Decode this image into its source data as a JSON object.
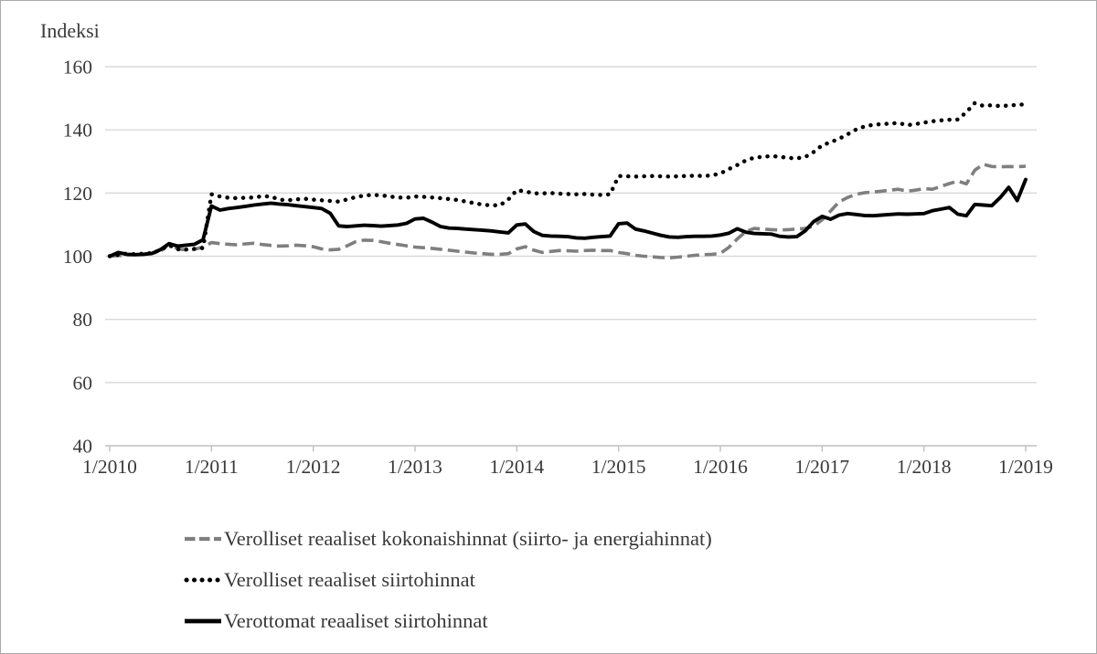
{
  "colors": {
    "dashed_series": "#7f7f7f",
    "black_series": "#000000",
    "gridline": "#d9d9d9",
    "axis_line": "#bfbfbf",
    "tick_text": "#3a3a3a",
    "background": "#ffffff"
  },
  "chart_data": {
    "type": "line",
    "title": "Indeksi",
    "xlabel": "",
    "ylabel": "Indeksi",
    "ylim": [
      40,
      160
    ],
    "yticks": [
      40,
      60,
      80,
      100,
      120,
      140,
      160
    ],
    "ytick_labels": [
      "40",
      "60",
      "80",
      "100",
      "120",
      "140",
      "160"
    ],
    "x_tick_labels": [
      "1/2010",
      "1/2011",
      "1/2012",
      "1/2013",
      "1/2014",
      "1/2015",
      "1/2016",
      "1/2017",
      "1/2018",
      "1/2019"
    ],
    "x_ticks_every_n_points": 12,
    "x_unit": "month",
    "x_range_note": "monthly data 1/2010 - 1/2019",
    "grid": "horizontal",
    "legend_position": "bottom-left",
    "series": [
      {
        "name": "Verolliset reaaliset kokonaishinnat (siirto- ja energiahinnat)",
        "style": "dashed",
        "color": "#7f7f7f",
        "values": [
          100.0,
          100.2,
          100.4,
          100.5,
          100.7,
          100.9,
          101.5,
          103.9,
          102.3,
          102.0,
          102.2,
          102.9,
          104.3,
          104.0,
          103.8,
          103.6,
          103.9,
          104.1,
          103.7,
          103.4,
          103.2,
          103.3,
          103.5,
          103.3,
          103.0,
          102.3,
          102.0,
          102.2,
          103.3,
          104.6,
          105.1,
          105.0,
          104.6,
          104.1,
          103.7,
          103.3,
          102.9,
          102.7,
          102.5,
          102.2,
          101.9,
          101.6,
          101.3,
          101.0,
          100.8,
          100.6,
          100.6,
          100.8,
          102.3,
          103.0,
          101.9,
          101.2,
          101.5,
          101.8,
          101.7,
          101.6,
          101.8,
          101.9,
          101.8,
          101.8,
          101.2,
          100.8,
          100.3,
          100.0,
          99.8,
          99.6,
          99.5,
          99.7,
          100.0,
          100.3,
          100.5,
          100.6,
          100.9,
          102.8,
          105.5,
          107.8,
          108.8,
          108.6,
          108.4,
          108.3,
          108.4,
          108.6,
          108.8,
          109.5,
          111.5,
          114.3,
          117.2,
          118.6,
          119.6,
          120.1,
          120.3,
          120.6,
          120.9,
          121.2,
          120.6,
          120.9,
          121.4,
          121.2,
          122.1,
          123.0,
          123.8,
          122.9,
          127.2,
          129.1,
          128.4,
          128.3,
          128.4,
          128.3,
          128.5
        ]
      },
      {
        "name": "Verolliset reaaliset siirtohinnat",
        "style": "dotted",
        "color": "#000000",
        "values": [
          100.0,
          100.4,
          100.8,
          100.6,
          100.8,
          101.0,
          102.0,
          103.5,
          102.2,
          102.1,
          102.3,
          102.6,
          119.6,
          118.9,
          118.5,
          118.4,
          118.5,
          118.6,
          119.0,
          118.9,
          117.9,
          117.7,
          118.0,
          118.2,
          117.9,
          117.7,
          117.5,
          117.3,
          118.0,
          118.7,
          119.2,
          119.4,
          119.3,
          118.9,
          118.6,
          118.5,
          118.9,
          118.8,
          118.6,
          118.4,
          118.1,
          117.8,
          117.3,
          116.8,
          116.3,
          116.1,
          116.1,
          118.0,
          120.9,
          120.5,
          119.9,
          119.9,
          120.0,
          119.8,
          119.7,
          119.6,
          119.7,
          119.5,
          119.4,
          119.6,
          125.4,
          125.3,
          125.2,
          125.3,
          125.4,
          125.3,
          125.2,
          125.3,
          125.4,
          125.5,
          125.4,
          125.6,
          126.2,
          127.6,
          128.9,
          130.3,
          131.2,
          131.5,
          131.7,
          131.5,
          131.1,
          131.0,
          131.4,
          133.0,
          135.1,
          136.1,
          137.2,
          138.6,
          140.1,
          141.1,
          141.6,
          141.8,
          142.0,
          142.2,
          141.5,
          141.8,
          142.3,
          142.7,
          143.0,
          143.2,
          143.3,
          145.6,
          148.5,
          147.6,
          147.8,
          147.5,
          147.7,
          147.9,
          148.1
        ]
      },
      {
        "name": "Verottomat reaaliset siirtohinnat",
        "style": "solid",
        "color": "#000000",
        "values": [
          100.0,
          101.2,
          100.6,
          100.5,
          100.6,
          100.9,
          102.1,
          104.0,
          103.2,
          103.5,
          103.8,
          105.2,
          115.9,
          114.6,
          115.1,
          115.4,
          115.8,
          116.2,
          116.5,
          116.8,
          116.5,
          116.3,
          116.0,
          115.7,
          115.4,
          115.1,
          113.6,
          109.6,
          109.4,
          109.6,
          109.8,
          109.7,
          109.5,
          109.7,
          109.9,
          110.4,
          111.8,
          112.0,
          110.8,
          109.4,
          108.9,
          108.8,
          108.6,
          108.4,
          108.2,
          108.0,
          107.7,
          107.4,
          109.9,
          110.2,
          107.8,
          106.6,
          106.4,
          106.3,
          106.2,
          105.8,
          105.7,
          106.0,
          106.2,
          106.4,
          110.3,
          110.5,
          108.6,
          108.0,
          107.3,
          106.6,
          106.1,
          106.0,
          106.2,
          106.3,
          106.3,
          106.4,
          106.7,
          107.3,
          108.7,
          107.6,
          107.2,
          107.1,
          107.0,
          106.3,
          106.1,
          106.2,
          108.0,
          111.0,
          112.6,
          111.7,
          113.0,
          113.5,
          113.2,
          112.9,
          112.8,
          113.0,
          113.2,
          113.4,
          113.3,
          113.4,
          113.5,
          114.4,
          114.9,
          115.4,
          113.3,
          112.8,
          116.4,
          116.2,
          116.0,
          118.6,
          121.8,
          117.6,
          124.3
        ]
      }
    ]
  }
}
